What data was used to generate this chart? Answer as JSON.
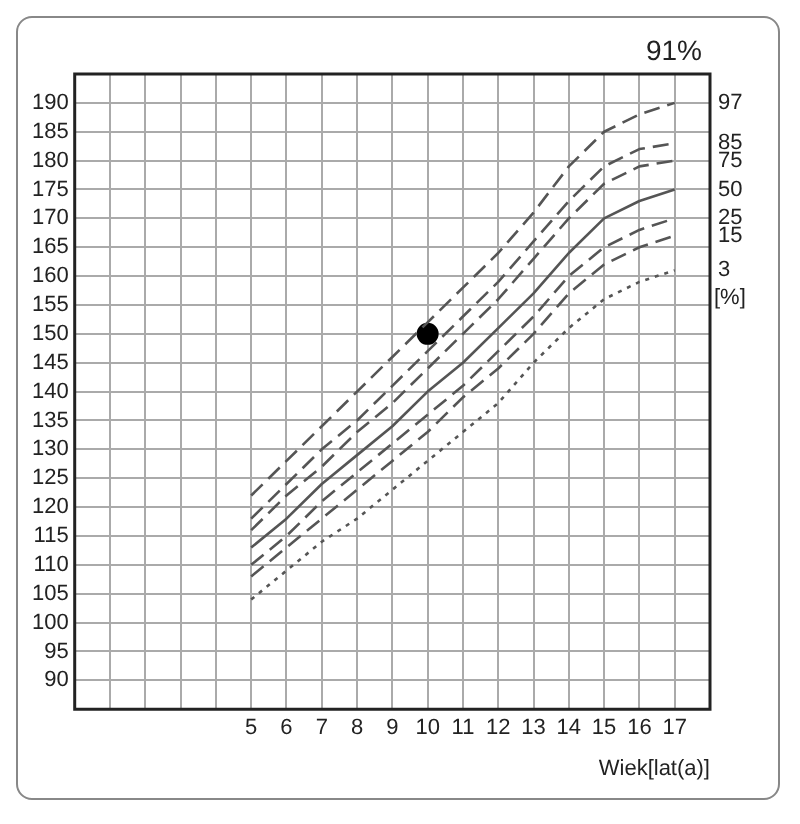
{
  "chart_data": {
    "type": "line",
    "xlabel": "Wiek[lat(a)]",
    "annotations": [
      "91%",
      "[%]"
    ],
    "x": [
      5,
      6,
      7,
      8,
      9,
      10,
      11,
      12,
      13,
      14,
      15,
      16,
      17
    ],
    "xlim": [
      0,
      18
    ],
    "xticks": [
      {
        "value": 1,
        "label": null
      },
      {
        "value": 2,
        "label": null
      },
      {
        "value": 3,
        "label": null
      },
      {
        "value": 4,
        "label": null
      },
      5,
      6,
      7,
      8,
      9,
      10,
      11,
      12,
      13,
      14,
      15,
      16,
      17
    ],
    "ylim": [
      85,
      195
    ],
    "yticks": [
      90,
      95,
      100,
      105,
      110,
      115,
      120,
      125,
      130,
      135,
      140,
      145,
      150,
      155,
      160,
      165,
      170,
      175,
      180,
      185,
      190
    ],
    "grid": true,
    "legend": false,
    "marker": "none",
    "series": [
      {
        "name": "97",
        "color": "#555555",
        "line_style": "dashed",
        "values": [
          122,
          128,
          134,
          140,
          146,
          152,
          158,
          164,
          171,
          179,
          185,
          188,
          190
        ]
      },
      {
        "name": "85",
        "color": "#555555",
        "line_style": "dashed",
        "values": [
          118,
          124,
          130,
          135,
          141,
          147,
          153,
          159,
          166,
          173,
          179,
          182,
          183
        ]
      },
      {
        "name": "75",
        "color": "#555555",
        "line_style": "dashed",
        "values": [
          116,
          122,
          127,
          133,
          138,
          144,
          150,
          156,
          163,
          170,
          176,
          179,
          180
        ]
      },
      {
        "name": "50",
        "color": "#555555",
        "line_style": "solid",
        "values": [
          113,
          118,
          124,
          129,
          134,
          140,
          145,
          151,
          157,
          164,
          170,
          173,
          175
        ]
      },
      {
        "name": "25",
        "color": "#555555",
        "line_style": "dashed",
        "values": [
          110,
          115,
          121,
          126,
          131,
          136,
          141,
          147,
          153,
          160,
          165,
          168,
          170
        ]
      },
      {
        "name": "15",
        "color": "#555555",
        "line_style": "dashed",
        "values": [
          108,
          113,
          118,
          123,
          128,
          133,
          139,
          144,
          150,
          157,
          162,
          165,
          167
        ]
      },
      {
        "name": "3",
        "color": "#555555",
        "line_style": "dotted",
        "values": [
          104,
          109,
          114,
          118,
          123,
          128,
          133,
          138,
          145,
          151,
          156,
          159,
          161
        ]
      },
      {
        "type": "scatter",
        "color": "#000000",
        "marker": "circle",
        "x": [
          10
        ],
        "values": [
          150
        ]
      }
    ]
  }
}
